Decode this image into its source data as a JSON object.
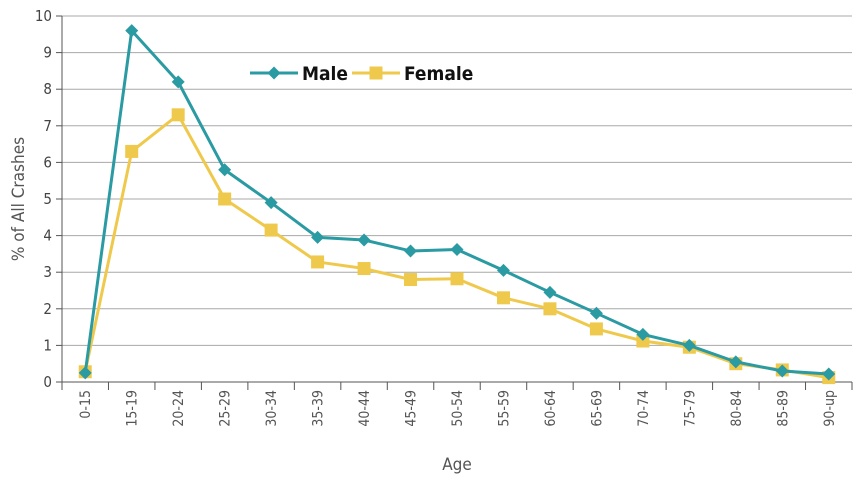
{
  "chart_data": {
    "type": "line",
    "title": "",
    "xlabel": "Age",
    "ylabel": "% of All Crashes",
    "ylim": [
      0,
      10
    ],
    "yticks": [
      "0",
      "1",
      "2",
      "3",
      "4",
      "5",
      "6",
      "7",
      "8",
      "9",
      "10"
    ],
    "grid": true,
    "legend_position": "top-center",
    "categories": [
      "0-15",
      "15-19",
      "20-24",
      "25-29",
      "30-34",
      "35-39",
      "40-44",
      "45-49",
      "50-54",
      "55-59",
      "60-64",
      "65-69",
      "70-74",
      "75-79",
      "80-84",
      "85-89",
      "90-up"
    ],
    "series": [
      {
        "name": "Male",
        "color": "#2a9aa3",
        "marker": "diamond",
        "values": [
          0.25,
          9.6,
          8.2,
          5.8,
          4.9,
          3.95,
          3.88,
          3.58,
          3.62,
          3.05,
          2.45,
          1.88,
          1.3,
          1.0,
          0.55,
          0.3,
          0.22
        ]
      },
      {
        "name": "Female",
        "color": "#efc94c",
        "marker": "square",
        "values": [
          0.28,
          6.3,
          7.3,
          5.0,
          4.15,
          3.28,
          3.1,
          2.8,
          2.82,
          2.3,
          2.0,
          1.45,
          1.12,
          0.95,
          0.5,
          0.33,
          0.12
        ]
      }
    ]
  }
}
